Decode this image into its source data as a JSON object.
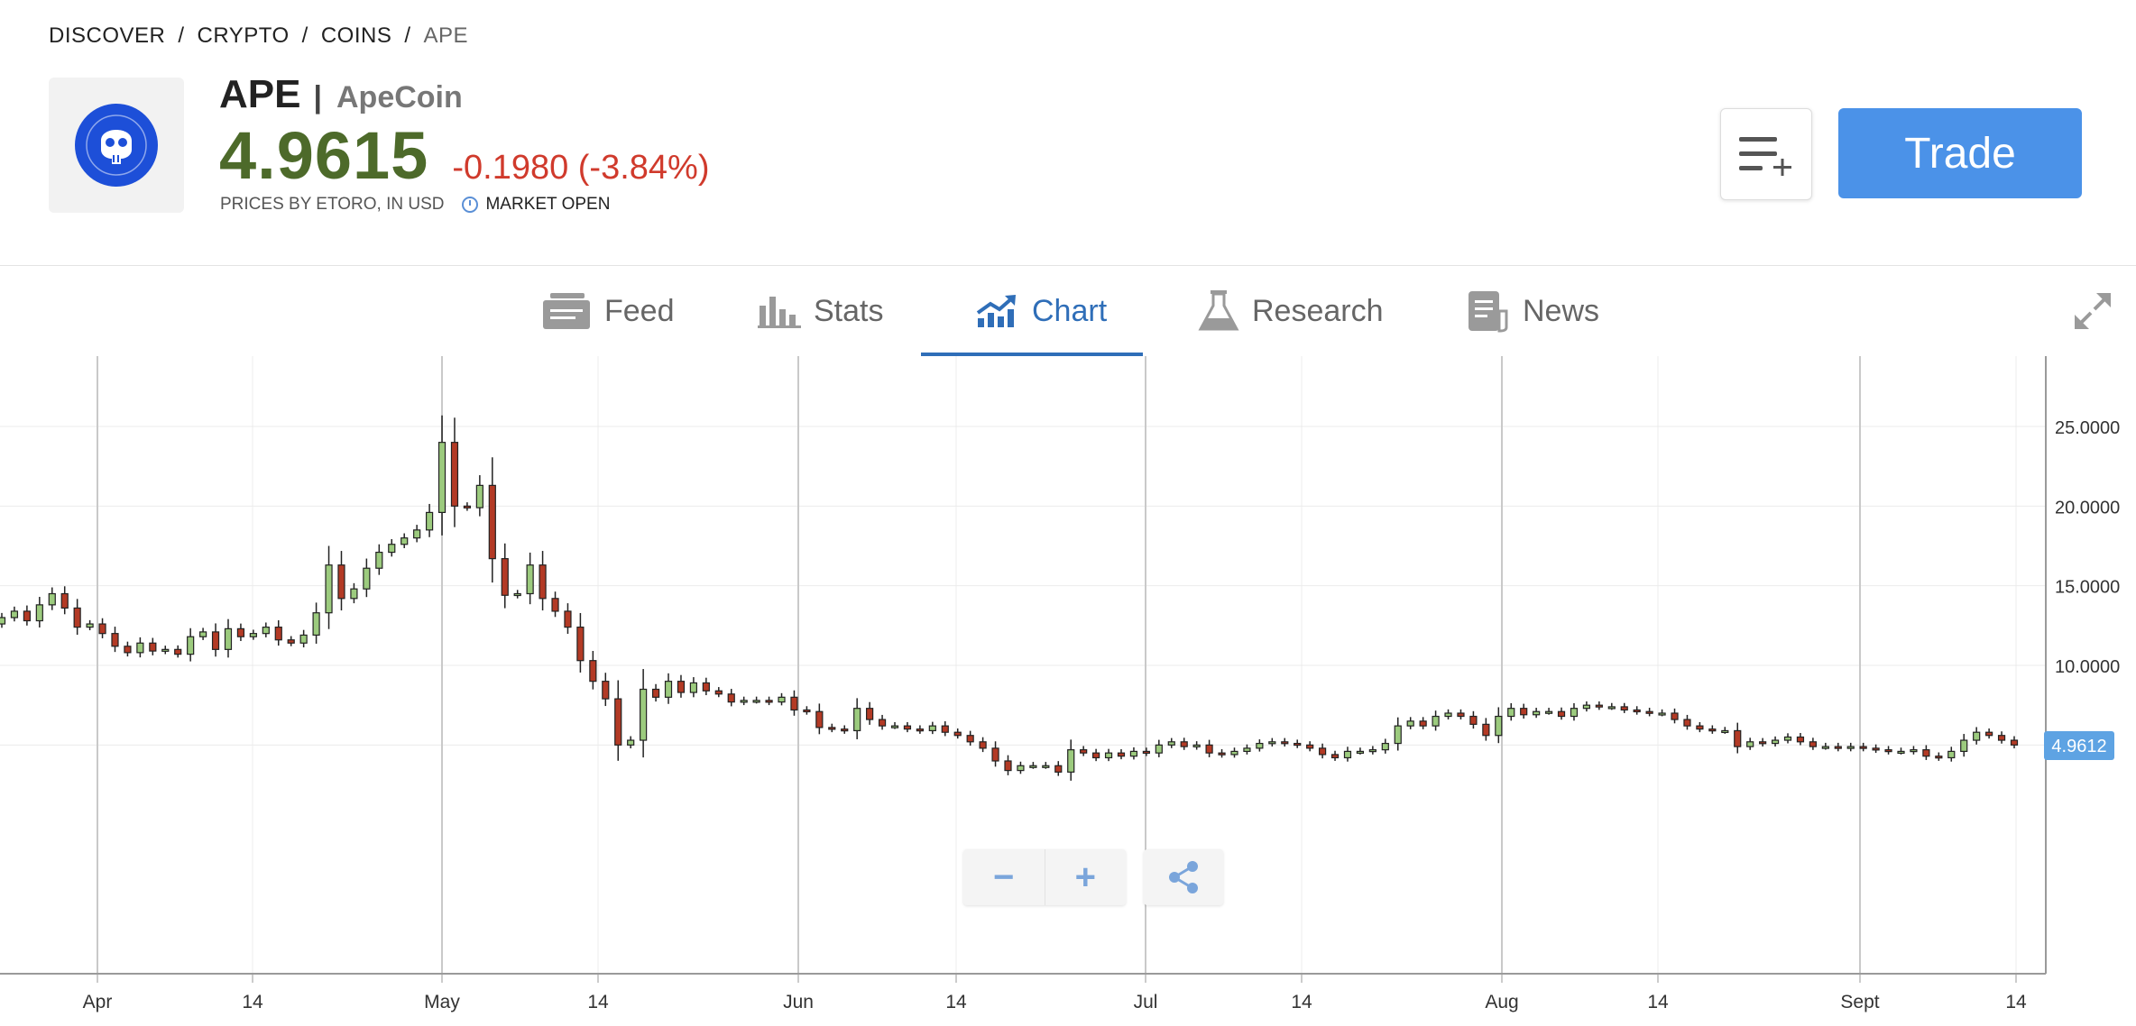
{
  "breadcrumb": {
    "items": [
      "DISCOVER",
      "CRYPTO",
      "COINS",
      "APE"
    ],
    "separator": "/"
  },
  "instrument": {
    "ticker": "APE",
    "separator": "|",
    "name": "ApeCoin",
    "logo_icon": "bored-ape-skull-icon",
    "price": "4.9615",
    "change": "-0.1980 (-3.84%)",
    "price_source": "PRICES BY ETORO, IN USD",
    "market_status": "MARKET OPEN"
  },
  "actions": {
    "watchlist_icon": "add-to-watchlist-icon",
    "trade_label": "Trade"
  },
  "tabs": [
    {
      "label": "Feed",
      "icon": "feed-icon",
      "active": false
    },
    {
      "label": "Stats",
      "icon": "bar-stats-icon",
      "active": false
    },
    {
      "label": "Chart",
      "icon": "trend-chart-icon",
      "active": true
    },
    {
      "label": "Research",
      "icon": "flask-icon",
      "active": false
    },
    {
      "label": "News",
      "icon": "newspaper-icon",
      "active": false
    }
  ],
  "colors": {
    "price_green": "#4d6a2a",
    "change_red": "#d03a2c",
    "accent_blue": "#4b92e8",
    "candle_up": "#9ccb7e",
    "candle_down": "#b33a25",
    "last_price_tag": "#5ea3e3"
  },
  "chart_controls": {
    "zoom_out": "−",
    "zoom_in": "+",
    "share_icon": "share-icon"
  },
  "chart_data": {
    "type": "candlestick",
    "y_ticks": [
      "25.0000",
      "20.0000",
      "15.0000",
      "10.0000"
    ],
    "ylim": [
      2.5,
      27.5
    ],
    "x_ticks": [
      "Apr",
      "14",
      "May",
      "14",
      "Jun",
      "14",
      "Jul",
      "14",
      "Aug",
      "14",
      "Sept",
      "14"
    ],
    "last_price_label": "4.9612",
    "grid": true,
    "closes": [
      13.0,
      13.4,
      12.8,
      13.8,
      14.5,
      13.6,
      12.4,
      12.6,
      12.0,
      11.2,
      10.8,
      11.4,
      10.9,
      11.0,
      10.7,
      11.8,
      12.1,
      11.0,
      12.3,
      11.8,
      12.0,
      12.4,
      11.6,
      11.4,
      11.9,
      13.3,
      16.3,
      14.2,
      14.8,
      16.1,
      17.1,
      17.6,
      18.0,
      18.5,
      19.6,
      24.0,
      20.0,
      19.9,
      21.3,
      16.7,
      14.4,
      14.5,
      16.3,
      14.2,
      13.4,
      12.4,
      10.3,
      9.0,
      7.9,
      5.0,
      5.3,
      8.5,
      8.0,
      9.0,
      8.3,
      8.9,
      8.4,
      8.2,
      7.7,
      7.8,
      7.8,
      7.7,
      8.0,
      7.2,
      7.1,
      6.1,
      6.0,
      5.9,
      7.3,
      6.6,
      6.2,
      6.2,
      6.0,
      5.9,
      6.2,
      5.8,
      5.6,
      5.2,
      4.8,
      4.0,
      3.4,
      3.7,
      3.7,
      3.7,
      3.3,
      4.7,
      4.5,
      4.2,
      4.5,
      4.3,
      4.6,
      4.5,
      5.0,
      5.2,
      4.9,
      5.0,
      4.5,
      4.4,
      4.6,
      4.8,
      5.1,
      5.2,
      5.1,
      5.0,
      4.8,
      4.4,
      4.2,
      4.6,
      4.6,
      4.7,
      5.1,
      6.2,
      6.5,
      6.2,
      6.8,
      7.0,
      6.8,
      6.3,
      5.6,
      6.8,
      7.3,
      6.9,
      7.1,
      7.1,
      6.8,
      7.3,
      7.5,
      7.4,
      7.4,
      7.2,
      7.1,
      7.0,
      7.0,
      6.6,
      6.2,
      6.0,
      5.9,
      5.9,
      4.9,
      5.2,
      5.1,
      5.3,
      5.5,
      5.2,
      4.9,
      4.9,
      4.8,
      4.9,
      4.8,
      4.7,
      4.6,
      4.6,
      4.7,
      4.3,
      4.2,
      4.6,
      5.3,
      5.8,
      5.6,
      5.3,
      5.0
    ]
  }
}
